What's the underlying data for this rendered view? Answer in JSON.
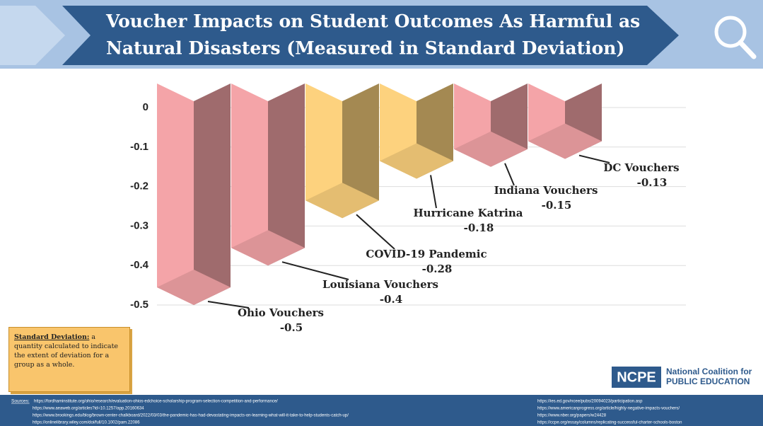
{
  "header": {
    "title_lines": [
      "Voucher Impacts on Student Outcomes As Harmful as",
      "Natural Disasters (Measured in Standard Deviation)"
    ]
  },
  "chart_data": {
    "type": "bar",
    "categories": [
      "Ohio Vouchers",
      "Louisiana Vouchers",
      "COVID-19 Pandemic",
      "Hurricane Katrina",
      "Indiana Vouchers",
      "DC Vouchers"
    ],
    "values": [
      -0.5,
      -0.4,
      -0.28,
      -0.18,
      -0.15,
      -0.13
    ],
    "colors": [
      "#f4a4a8",
      "#f4a4a8",
      "#fdd27e",
      "#fdd27e",
      "#f4a4a8",
      "#f4a4a8"
    ],
    "ylim": [
      -0.5,
      0
    ],
    "yticks": [
      0,
      -0.1,
      -0.2,
      -0.3,
      -0.4,
      -0.5
    ],
    "grid": true
  },
  "note": {
    "term": "Standard Deviation:",
    "text": "a quantity calculated to indicate the extent of deviation for a group as a whole."
  },
  "logo": {
    "abbr": "NCPE",
    "line1": "National Coalition for",
    "line2": "PUBLIC EDUCATION"
  },
  "sources": {
    "label": "Sources:",
    "left": [
      "https://fordhaminstitute.org/ohio/research/evaluation-ohios-edchoice-scholarship-program-selection-competition-and-performance/",
      "https://www.aeaweb.org/articles?id=10.1257/app.20160634",
      "https://www.brookings.edu/blog/brown-center-chalkboard/2022/03/03/the-pandemic-has-had-devastating-impacts-on-learning-what-will-it-take-to-help-students-catch-up/",
      "https://onlinelibrary.wiley.com/doi/full/10.1002/pam.22086"
    ],
    "right": [
      "https://ies.ed.gov/ncee/pubs/20094023/participation.asp",
      "https://www.americanprogress.org/article/highly-negative-impacts-vouchers/",
      "https://www.nber.org/papers/w24428",
      "https://ccpe.org/essay/columns/replicating-successful-charter-schools-boston"
    ]
  }
}
